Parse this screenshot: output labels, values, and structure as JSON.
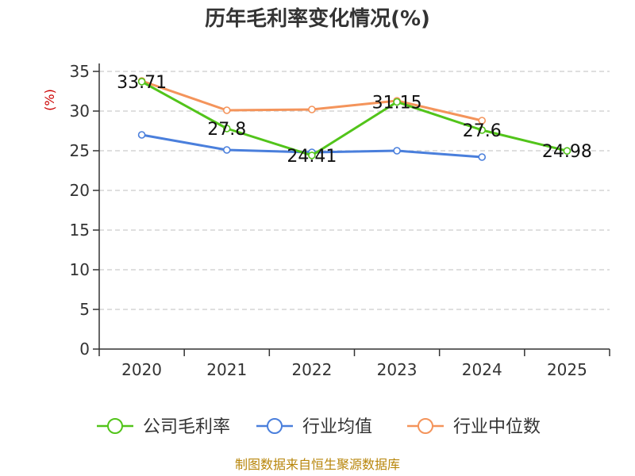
{
  "chart_data": {
    "type": "line",
    "title": "历年毛利率变化情况(%)",
    "ylabel": "(%)",
    "xlabel": "",
    "ylim": [
      0,
      35
    ],
    "yticks": [
      0,
      5,
      10,
      15,
      20,
      25,
      30,
      35
    ],
    "grid": "horizontal-dashed",
    "categories": [
      "2020",
      "2021",
      "2022",
      "2023",
      "2024",
      "2025"
    ],
    "series": [
      {
        "name": "公司毛利率",
        "color": "#52c41a",
        "values": [
          33.71,
          27.8,
          24.41,
          31.15,
          27.6,
          24.98
        ],
        "labels": [
          "33.71",
          "27.8",
          "24.41",
          "31.15",
          "27.6",
          "24.98"
        ]
      },
      {
        "name": "行业均值",
        "color": "#4a7fdc",
        "values": [
          27.0,
          25.1,
          24.8,
          25.0,
          24.2,
          null
        ]
      },
      {
        "name": "行业中位数",
        "color": "#f4945b",
        "values": [
          33.8,
          30.1,
          30.2,
          31.3,
          28.8,
          null
        ]
      }
    ],
    "legend": "bottom"
  },
  "source": "制图数据来自恒生聚源数据库"
}
